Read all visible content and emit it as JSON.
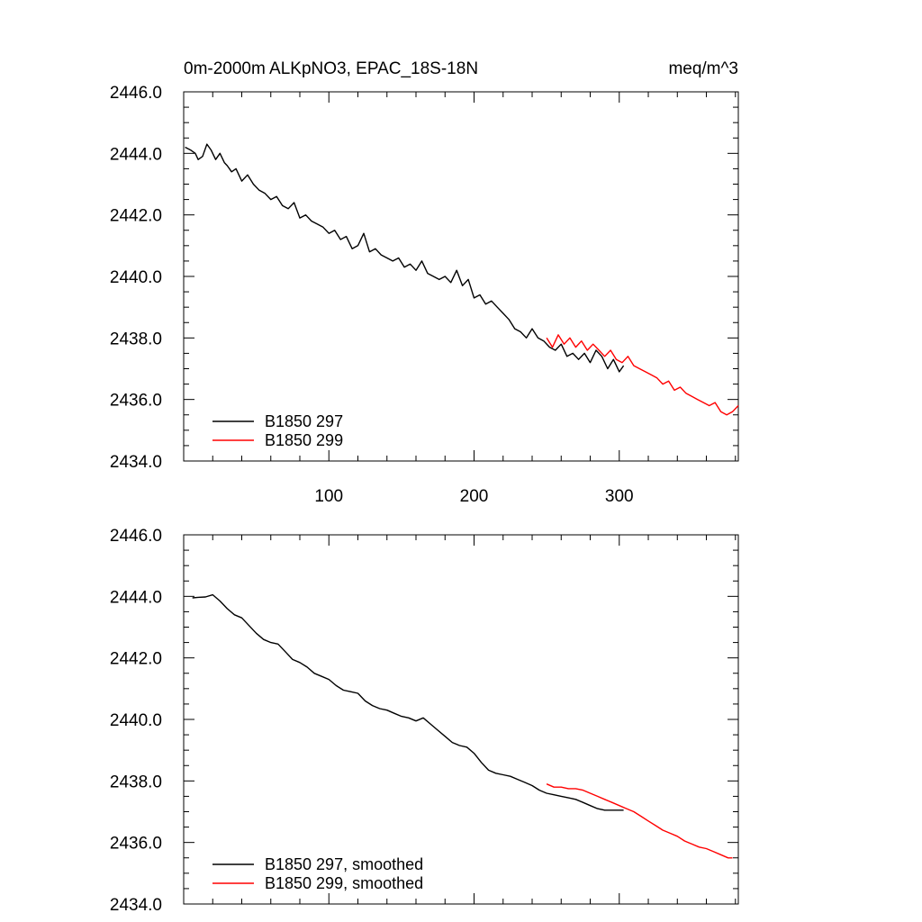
{
  "figure": {
    "title_left": "0m-2000m ALKpNO3, EPAC_18S-18N",
    "title_right": "meq/m^3"
  },
  "colors": {
    "series_297": "#000000",
    "series_299": "#ff0000"
  },
  "chart_data": [
    {
      "type": "line",
      "title": "0m-2000m ALKpNO3, EPAC_18S-18N",
      "units_label": "meq/m^3",
      "xlim": [
        0,
        382
      ],
      "ylim": [
        2434.0,
        2446.0
      ],
      "x_ticks": [
        100,
        200,
        300
      ],
      "x_tick_labels": [
        "100",
        "200",
        "300"
      ],
      "y_ticks": [
        2434,
        2436,
        2438,
        2440,
        2442,
        2444,
        2446
      ],
      "y_tick_labels": [
        "2434.0",
        "2436.0",
        "2438.0",
        "2440.0",
        "2442.0",
        "2444.0",
        "2446.0"
      ],
      "legend_position": "bottom-left",
      "series": [
        {
          "name": "B1850 297",
          "color": "#000000",
          "x": [
            1,
            5,
            8,
            10,
            13,
            16,
            19,
            22,
            25,
            28,
            30,
            33,
            36,
            40,
            44,
            48,
            52,
            56,
            60,
            64,
            68,
            72,
            76,
            80,
            84,
            88,
            92,
            96,
            100,
            104,
            108,
            112,
            116,
            120,
            124,
            128,
            132,
            136,
            140,
            144,
            148,
            152,
            156,
            160,
            164,
            168,
            172,
            176,
            180,
            184,
            188,
            192,
            196,
            200,
            204,
            208,
            212,
            216,
            220,
            224,
            228,
            232,
            236,
            240,
            244,
            248,
            252,
            256,
            260,
            264,
            268,
            272,
            276,
            280,
            284,
            288,
            292,
            296,
            300,
            303
          ],
          "values": [
            2444.2,
            2444.1,
            2444.0,
            2443.8,
            2443.9,
            2444.3,
            2444.1,
            2443.8,
            2444.0,
            2443.7,
            2443.6,
            2443.4,
            2443.5,
            2443.1,
            2443.3,
            2443.0,
            2442.8,
            2442.7,
            2442.5,
            2442.6,
            2442.3,
            2442.2,
            2442.4,
            2441.9,
            2442.0,
            2441.8,
            2441.7,
            2441.6,
            2441.4,
            2441.5,
            2441.2,
            2441.3,
            2440.9,
            2441.0,
            2441.4,
            2440.8,
            2440.9,
            2440.7,
            2440.6,
            2440.5,
            2440.6,
            2440.3,
            2440.4,
            2440.2,
            2440.5,
            2440.1,
            2440.0,
            2439.9,
            2440.0,
            2439.8,
            2440.2,
            2439.7,
            2439.9,
            2439.3,
            2439.4,
            2439.1,
            2439.2,
            2439.0,
            2438.8,
            2438.6,
            2438.3,
            2438.2,
            2438.0,
            2438.3,
            2438.0,
            2437.9,
            2437.7,
            2437.6,
            2437.8,
            2437.4,
            2437.5,
            2437.3,
            2437.5,
            2437.2,
            2437.6,
            2437.4,
            2437.0,
            2437.3,
            2436.9,
            2437.1
          ]
        },
        {
          "name": "B1850 299",
          "color": "#ff0000",
          "x": [
            250,
            254,
            258,
            262,
            266,
            270,
            274,
            278,
            282,
            286,
            290,
            294,
            298,
            302,
            306,
            310,
            314,
            318,
            322,
            326,
            330,
            334,
            338,
            342,
            346,
            350,
            354,
            358,
            362,
            366,
            370,
            374,
            378,
            382
          ],
          "values": [
            2438.0,
            2437.7,
            2438.1,
            2437.8,
            2438.0,
            2437.7,
            2437.9,
            2437.6,
            2437.8,
            2437.6,
            2437.4,
            2437.6,
            2437.3,
            2437.2,
            2437.4,
            2437.1,
            2437.0,
            2436.9,
            2436.8,
            2436.7,
            2436.5,
            2436.6,
            2436.3,
            2436.4,
            2436.2,
            2436.1,
            2436.0,
            2435.9,
            2435.8,
            2435.9,
            2435.6,
            2435.5,
            2435.6,
            2435.8
          ]
        }
      ]
    },
    {
      "type": "line",
      "xlim": [
        0,
        382
      ],
      "ylim": [
        2434.0,
        2446.0
      ],
      "x_ticks": [
        100,
        200,
        300
      ],
      "y_ticks": [
        2434,
        2436,
        2438,
        2440,
        2442,
        2444,
        2446
      ],
      "y_tick_labels": [
        "2434.0",
        "2436.0",
        "2438.0",
        "2440.0",
        "2442.0",
        "2444.0",
        "2446.0"
      ],
      "legend_position": "bottom-left",
      "series": [
        {
          "name": "B1850 297, smoothed",
          "color": "#000000",
          "x": [
            6,
            10,
            15,
            20,
            25,
            30,
            35,
            40,
            45,
            50,
            55,
            60,
            65,
            70,
            75,
            80,
            85,
            90,
            95,
            100,
            105,
            110,
            115,
            120,
            125,
            130,
            135,
            140,
            145,
            150,
            155,
            160,
            165,
            170,
            175,
            180,
            185,
            190,
            195,
            200,
            205,
            210,
            215,
            220,
            225,
            230,
            235,
            240,
            245,
            250,
            255,
            260,
            265,
            270,
            275,
            280,
            285,
            290,
            295,
            300,
            303
          ],
          "values": [
            2443.95,
            2443.97,
            2443.98,
            2444.05,
            2443.85,
            2443.6,
            2443.4,
            2443.3,
            2443.05,
            2442.8,
            2442.6,
            2442.5,
            2442.45,
            2442.2,
            2441.95,
            2441.85,
            2441.7,
            2441.5,
            2441.4,
            2441.3,
            2441.1,
            2440.95,
            2440.9,
            2440.85,
            2440.6,
            2440.45,
            2440.35,
            2440.3,
            2440.2,
            2440.1,
            2440.05,
            2439.95,
            2440.05,
            2439.85,
            2439.65,
            2439.45,
            2439.25,
            2439.15,
            2439.1,
            2438.9,
            2438.6,
            2438.35,
            2438.25,
            2438.2,
            2438.15,
            2438.05,
            2437.95,
            2437.85,
            2437.7,
            2437.6,
            2437.55,
            2437.5,
            2437.45,
            2437.4,
            2437.3,
            2437.2,
            2437.1,
            2437.05,
            2437.05,
            2437.05,
            2437.05
          ]
        },
        {
          "name": "B1850 299, smoothed",
          "color": "#ff0000",
          "x": [
            250,
            255,
            260,
            265,
            270,
            275,
            280,
            285,
            290,
            295,
            300,
            305,
            310,
            315,
            320,
            325,
            330,
            335,
            340,
            345,
            350,
            355,
            360,
            365,
            370,
            375,
            378
          ],
          "values": [
            2437.9,
            2437.8,
            2437.8,
            2437.75,
            2437.75,
            2437.7,
            2437.6,
            2437.5,
            2437.4,
            2437.3,
            2437.2,
            2437.1,
            2437.0,
            2436.85,
            2436.7,
            2436.55,
            2436.4,
            2436.3,
            2436.2,
            2436.05,
            2435.95,
            2435.85,
            2435.8,
            2435.7,
            2435.6,
            2435.5,
            2435.5
          ]
        }
      ]
    }
  ]
}
